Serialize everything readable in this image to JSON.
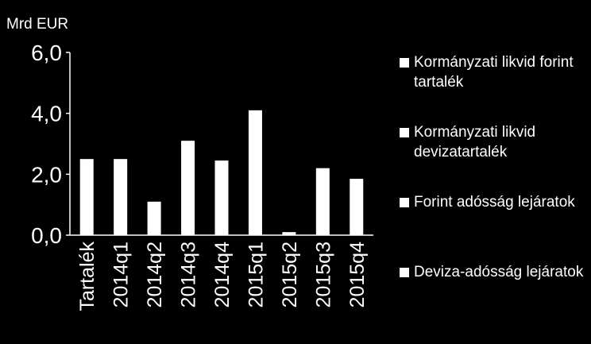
{
  "chart_data": {
    "type": "bar",
    "ylabel": "Mrd EUR",
    "ylim": [
      0,
      6
    ],
    "yticks": [
      0,
      2,
      4,
      6
    ],
    "ytick_labels": [
      "0,0",
      "2,0",
      "4,0",
      "6,0"
    ],
    "categories": [
      "Tartalék",
      "2014q1",
      "2014q2",
      "2014q3",
      "2014q4",
      "2015q1",
      "2015q2",
      "2015q3",
      "2015q4"
    ],
    "values": [
      2.5,
      2.5,
      1.1,
      3.1,
      2.45,
      4.1,
      0.1,
      2.2,
      1.85
    ],
    "legend": {
      "position": "right",
      "items": [
        {
          "label": "Kormányzati likvid forint tartalék",
          "color": "#ffffff"
        },
        {
          "label": "Kormányzati likvid devizatartalék",
          "color": "#ffffff"
        },
        {
          "label": "Forint adósság lejáratok",
          "color": "#ffffff"
        },
        {
          "label": "Deviza-adósság lejáratok",
          "color": "#ffffff"
        }
      ]
    },
    "colors": {
      "background": "#000000",
      "bar": "#ffffff",
      "axis": "#ffffff",
      "text": "#ffffff"
    },
    "grid": false
  }
}
